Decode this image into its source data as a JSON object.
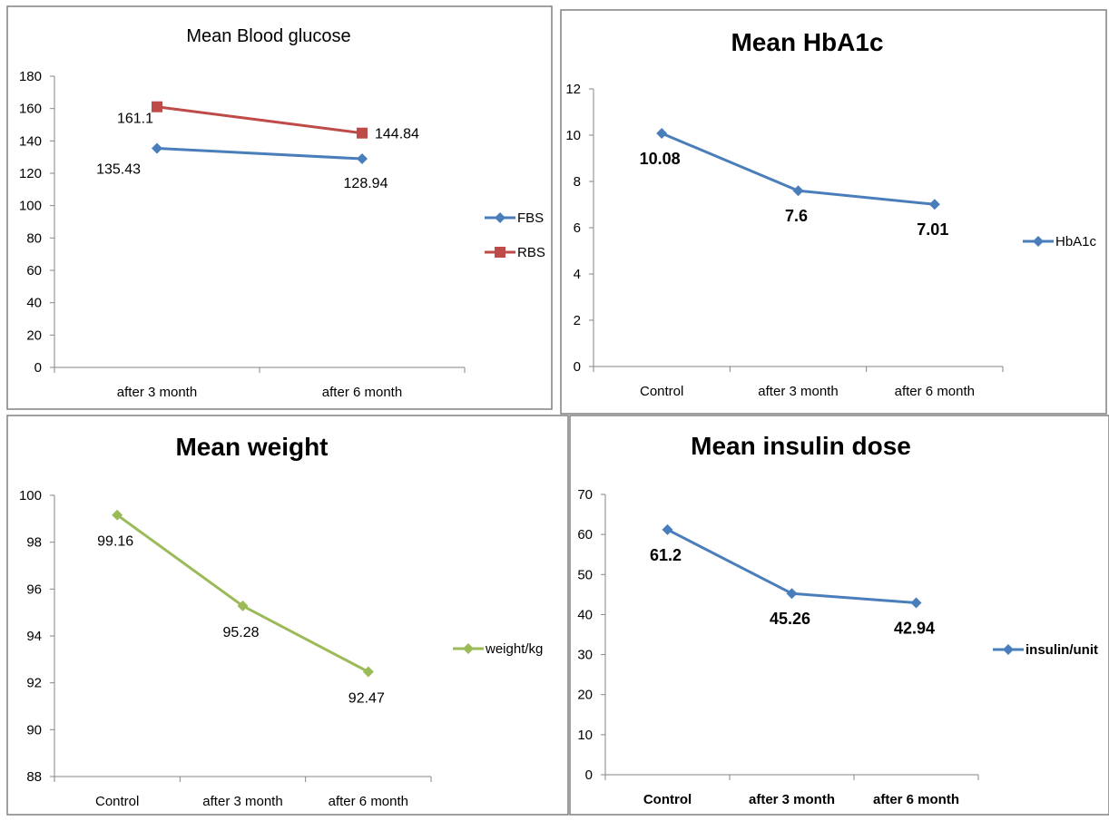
{
  "chart_data": [
    {
      "type": "line",
      "title": "Mean Blood glucose",
      "title_bold": false,
      "categories": [
        "after 3 month",
        "after 6 month"
      ],
      "ylim": [
        0,
        180
      ],
      "ytick_step": 20,
      "series": [
        {
          "name": "FBS",
          "values": [
            135.43,
            128.94
          ],
          "labels": [
            "135.43",
            "128.94"
          ],
          "color": "#4a7ebb",
          "marker": "diamond"
        },
        {
          "name": "RBS",
          "values": [
            161.1,
            144.84
          ],
          "labels": [
            "161.1",
            "144.84"
          ],
          "color": "#be4b48",
          "marker": "square"
        }
      ],
      "data_labels_bold": false,
      "tick_labels_bold": false,
      "legend": "right",
      "grid": false
    },
    {
      "type": "line",
      "title": "Mean HbA1c",
      "title_bold": true,
      "categories": [
        "Control",
        "after 3 month",
        "after 6 month"
      ],
      "ylim": [
        0,
        12
      ],
      "ytick_step": 2,
      "series": [
        {
          "name": "HbA1c",
          "values": [
            10.08,
            7.6,
            7.01
          ],
          "labels": [
            "10.08",
            "7.6",
            "7.01"
          ],
          "color": "#4a7ebb",
          "marker": "diamond"
        }
      ],
      "data_labels_bold": true,
      "tick_labels_bold": false,
      "legend": "right",
      "grid": false
    },
    {
      "type": "line",
      "title": "Mean weight",
      "title_bold": true,
      "categories": [
        "Control",
        "after 3 month",
        "after 6 month"
      ],
      "ylim": [
        88,
        100
      ],
      "ytick_step": 2,
      "series": [
        {
          "name": "weight/kg",
          "values": [
            99.16,
            95.28,
            92.47
          ],
          "labels": [
            "99.16",
            "95.28",
            "92.47"
          ],
          "color": "#9bbb59",
          "marker": "diamond"
        }
      ],
      "data_labels_bold": false,
      "tick_labels_bold": false,
      "legend": "right",
      "grid": false
    },
    {
      "type": "line",
      "title": "Mean insulin dose",
      "title_bold": true,
      "categories": [
        "Control",
        "after 3 month",
        "after 6 month"
      ],
      "ylim": [
        0,
        70
      ],
      "ytick_step": 10,
      "series": [
        {
          "name": "insulin/unit",
          "values": [
            61.2,
            45.26,
            42.94
          ],
          "labels": [
            "61.2",
            "45.26",
            "42.94"
          ],
          "color": "#4a7ebb",
          "marker": "diamond"
        }
      ],
      "data_labels_bold": true,
      "tick_labels_bold": true,
      "legend": "right",
      "grid": false
    }
  ]
}
